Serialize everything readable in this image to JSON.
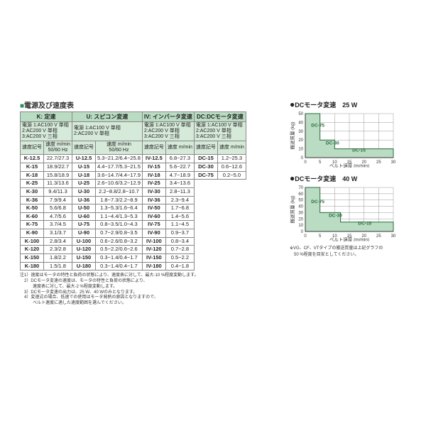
{
  "main_title": "電源及び速度表",
  "groups": {
    "k": {
      "name": "K: 定速",
      "power": "電源 1:AC100 V 単相\n2:AC200 V 単相\n3:AC200 V 三相",
      "code_hdr": "速度記号",
      "val_hdr": "速度 m/min\n50/60 Hz"
    },
    "u": {
      "name": "U: スピコン変速",
      "power": "電源 1:AC100 V 単相\n2:AC200 V 単相",
      "code_hdr": "速度記号",
      "val_hdr": "速度 m/min\n50/60 Hz"
    },
    "iv": {
      "name": "IV: インバータ変速",
      "power": "電源 1:AC100 V 単相\n2:AC200 V 単相\n3:AC200 V 三相",
      "code_hdr": "速度記号",
      "val_hdr": "速度 m/min"
    },
    "dc": {
      "name": "DC:DCモータ変速",
      "power": "電源 1:AC100 V 単相\n2:AC200 V 単相\n3:AC200 V 三相",
      "code_hdr": "速度記号",
      "val_hdr": "速度 m/min"
    }
  },
  "rows_k": [
    [
      "K-12.5",
      "22.7/27.3"
    ],
    [
      "K-15",
      "18.9/22.7"
    ],
    [
      "K-18",
      "15.8/18.9"
    ],
    [
      "K-25",
      "11.3/13.6"
    ],
    [
      "K-30",
      "9.4/11.3"
    ],
    [
      "K-36",
      "7.9/9.4"
    ],
    [
      "K-50",
      "5.6/6.8"
    ],
    [
      "K-60",
      "4.7/5.6"
    ],
    [
      "K-75",
      "3.7/4.5"
    ],
    [
      "K-90",
      "3.1/3.7"
    ],
    [
      "K-100",
      "2.8/3.4"
    ],
    [
      "K-120",
      "2.3/2.8"
    ],
    [
      "K-150",
      "1.8/2.2"
    ],
    [
      "K-180",
      "1.5/1.8"
    ]
  ],
  "rows_u": [
    [
      "U-12.5",
      "5.3~21.2/6.4~25.8"
    ],
    [
      "U-15",
      "4.4~17.7/5.3~21.5"
    ],
    [
      "U-18",
      "3.6~14.7/4.4~17.9"
    ],
    [
      "U-25",
      "2.6~10.6/3.2~12.9"
    ],
    [
      "U-30",
      "2.2~8.8/2.8~10.7"
    ],
    [
      "U-36",
      "1.8~7.3/2.2~8.9"
    ],
    [
      "U-50",
      "1.3~5.3/1.6~6.4"
    ],
    [
      "U-60",
      "1.1~4.4/1.3~5.3"
    ],
    [
      "U-75",
      "0.8~3.5/1.0~4.3"
    ],
    [
      "U-90",
      "0.7~2.9/0.8~3.5"
    ],
    [
      "U-100",
      "0.6~2.6/0.8~3.2"
    ],
    [
      "U-120",
      "0.5~2.2/0.6~2.6"
    ],
    [
      "U-150",
      "0.3~1.4/0.4~1.7"
    ],
    [
      "U-180",
      "0.3~1.4/0.4~1.7"
    ]
  ],
  "rows_iv": [
    [
      "IV-12.5",
      "6.8~27.3"
    ],
    [
      "IV-15",
      "5.6~22.7"
    ],
    [
      "IV-18",
      "4.7~18.9"
    ],
    [
      "IV-25",
      "3.4~13.6"
    ],
    [
      "IV-30",
      "2.8~11.3"
    ],
    [
      "IV-36",
      "2.3~9.4"
    ],
    [
      "IV-50",
      "1.7~6.8"
    ],
    [
      "IV-60",
      "1.4~5.6"
    ],
    [
      "IV-75",
      "1.1~4.5"
    ],
    [
      "IV-90",
      "0.9~3.7"
    ],
    [
      "IV-100",
      "0.8~3.4"
    ],
    [
      "IV-120",
      "0.7~2.8"
    ],
    [
      "IV-150",
      "0.5~2.2"
    ],
    [
      "IV-180",
      "0.4~1.8"
    ]
  ],
  "rows_dc": [
    [
      "DC-15",
      "1.2~25.3"
    ],
    [
      "DC-30",
      "0.6~12.6"
    ],
    [
      "DC-75",
      "0.2~5.0"
    ]
  ],
  "notes": [
    "注1）速度はモータの特性と負荷の状態により、速度表に対して、最大-10 %程度変動します。",
    "　2）DCモータ変速の速度は、モータの特性と負荷の状態により、",
    "　　　速度表に対して、最大-2 %程度変動します。",
    "　3）DCモータ変速の出力は、25 W、40 Wのみとなります。",
    "　4）変速式の場合、低速での使用はモータ発熱の原因となりますので、",
    "　　　ベルト速度に適した速度範囲を選んでください。"
  ],
  "chart25": {
    "title": "DCモータ変速　25 W",
    "x_label": "ベルト速度 (m/min)",
    "y_label": "搬送質量 (kg)",
    "x_max": 30,
    "y_max": 50,
    "x_step": 5,
    "y_step": 10,
    "series": {
      "DC-75": {
        "points": [
          [
            0,
            50
          ],
          [
            5,
            50
          ],
          [
            5,
            20
          ],
          [
            10,
            20
          ],
          [
            10,
            10
          ],
          [
            30,
            10
          ],
          [
            30,
            0
          ],
          [
            0,
            0
          ]
        ],
        "label_at": [
          2,
          35
        ]
      },
      "DC-30": {
        "points": [
          [
            5,
            20
          ],
          [
            10,
            20
          ],
          [
            10,
            10
          ],
          [
            12,
            10
          ]
        ],
        "label_at": [
          7,
          15
        ]
      },
      "DC-15": {
        "points": [
          [
            10,
            10
          ],
          [
            30,
            10
          ]
        ],
        "label_at": [
          16,
          7
        ]
      }
    },
    "colors": {
      "fill": "#b9dcc2",
      "stroke": "#2a6b3f",
      "grid": "#999999",
      "bg": "#ffffff"
    }
  },
  "chart40": {
    "title": "DCモータ変速　40 W",
    "x_label": "ベルト速度 (m/min)",
    "y_label": "搬送質量 (kg)",
    "x_max": 30,
    "y_max": 70,
    "x_step": 5,
    "y_step": 10,
    "series": {
      "DC-75": {
        "label_at": [
          2,
          45
        ]
      },
      "DC-30": {
        "label_at": [
          8,
          23
        ]
      },
      "DC-15": {
        "label_at": [
          18,
          11
        ]
      }
    },
    "step_path": [
      [
        0,
        70
      ],
      [
        5,
        70
      ],
      [
        5,
        30
      ],
      [
        12,
        30
      ],
      [
        12,
        15
      ],
      [
        30,
        15
      ],
      [
        30,
        0
      ],
      [
        0,
        0
      ]
    ],
    "colors": {
      "fill": "#b9dcc2",
      "stroke": "#2a6b3f",
      "grid": "#999999",
      "bg": "#ffffff"
    }
  },
  "chart_footnote": "※VG、CF、VTタイプの搬送質量は上記グラフの\n　50 %程度を目安としてください。"
}
